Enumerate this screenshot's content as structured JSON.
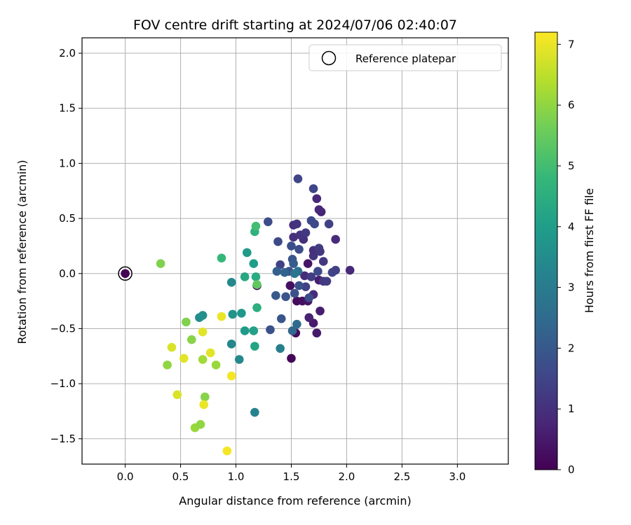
{
  "chart_data": {
    "type": "scatter",
    "title": "FOV centre drift starting at 2024/07/06 02:40:07",
    "xlabel": "Angular distance from reference (arcmin)",
    "ylabel": "Rotation from reference (arcmin)",
    "xlim": [
      -0.39,
      3.46
    ],
    "ylim": [
      -1.73,
      2.14
    ],
    "xticks": [
      "0.0",
      "0.5",
      "1.0",
      "1.5",
      "2.0",
      "2.5",
      "3.0"
    ],
    "xtick_values": [
      0.0,
      0.5,
      1.0,
      1.5,
      2.0,
      2.5,
      3.0
    ],
    "yticks": [
      "−1.5",
      "−1.0",
      "−0.5",
      "0.0",
      "0.5",
      "1.0",
      "1.5",
      "2.0"
    ],
    "ytick_values": [
      -1.5,
      -1.0,
      -0.5,
      0.0,
      0.5,
      1.0,
      1.5,
      2.0
    ],
    "grid": true,
    "legend": {
      "position": "top-right",
      "entries": [
        "Reference platepar"
      ]
    },
    "reference_point": {
      "x": 0.0,
      "y": 0.0,
      "label": "Reference platepar"
    },
    "colorbar": {
      "label": "Hours from first FF file",
      "colormap": "viridis",
      "range": [
        0,
        7.2
      ],
      "ticks": [
        "0",
        "1",
        "2",
        "3",
        "4",
        "5",
        "6",
        "7"
      ],
      "tick_values": [
        0,
        1,
        2,
        3,
        4,
        5,
        6,
        7
      ]
    },
    "points": [
      {
        "x": 0.0,
        "y": 0.0,
        "h": 0.0
      },
      {
        "x": 1.19,
        "y": -0.11,
        "h": 0.1
      },
      {
        "x": 1.5,
        "y": -0.77,
        "h": 0.1
      },
      {
        "x": 1.54,
        "y": -0.54,
        "h": 0.2
      },
      {
        "x": 1.55,
        "y": -0.25,
        "h": 0.2
      },
      {
        "x": 1.49,
        "y": -0.11,
        "h": 0.3
      },
      {
        "x": 1.6,
        "y": -0.25,
        "h": 0.3
      },
      {
        "x": 1.65,
        "y": -0.25,
        "h": 0.4
      },
      {
        "x": 1.65,
        "y": 0.09,
        "h": 0.4
      },
      {
        "x": 1.7,
        "y": -0.45,
        "h": 0.5
      },
      {
        "x": 1.73,
        "y": -0.54,
        "h": 0.5
      },
      {
        "x": 1.76,
        "y": -0.34,
        "h": 0.6
      },
      {
        "x": 1.75,
        "y": -0.06,
        "h": 0.6
      },
      {
        "x": 1.66,
        "y": -0.4,
        "h": 0.7
      },
      {
        "x": 1.77,
        "y": 0.56,
        "h": 0.7
      },
      {
        "x": 1.75,
        "y": 0.58,
        "h": 0.8
      },
      {
        "x": 1.73,
        "y": 0.68,
        "h": 0.8
      },
      {
        "x": 1.62,
        "y": -0.02,
        "h": 0.9
      },
      {
        "x": 1.7,
        "y": -0.19,
        "h": 0.9
      },
      {
        "x": 1.61,
        "y": 0.31,
        "h": 1.0
      },
      {
        "x": 1.52,
        "y": 0.44,
        "h": 1.0
      },
      {
        "x": 1.58,
        "y": 0.35,
        "h": 1.1
      },
      {
        "x": 1.7,
        "y": 0.16,
        "h": 1.1
      },
      {
        "x": 1.79,
        "y": 0.11,
        "h": 1.2
      },
      {
        "x": 1.79,
        "y": -0.07,
        "h": 1.2
      },
      {
        "x": 1.82,
        "y": -0.07,
        "h": 1.3
      },
      {
        "x": 1.68,
        "y": -0.03,
        "h": 1.3
      },
      {
        "x": 1.63,
        "y": -0.12,
        "h": 1.4
      },
      {
        "x": 1.4,
        "y": 0.08,
        "h": 1.4
      },
      {
        "x": 1.56,
        "y": 0.86,
        "h": 1.5
      },
      {
        "x": 1.7,
        "y": 0.77,
        "h": 1.5
      },
      {
        "x": 1.68,
        "y": 0.48,
        "h": 1.6
      },
      {
        "x": 1.71,
        "y": 0.45,
        "h": 1.6
      },
      {
        "x": 1.57,
        "y": 0.22,
        "h": 1.7
      },
      {
        "x": 1.5,
        "y": 0.25,
        "h": 1.7
      },
      {
        "x": 1.48,
        "y": 0.02,
        "h": 1.8
      },
      {
        "x": 1.53,
        "y": -0.18,
        "h": 1.8
      },
      {
        "x": 1.45,
        "y": -0.21,
        "h": 1.9
      },
      {
        "x": 1.41,
        "y": -0.41,
        "h": 1.9
      },
      {
        "x": 1.36,
        "y": -0.2,
        "h": 2.0
      },
      {
        "x": 1.52,
        "y": 0.33,
        "h": 1.0
      },
      {
        "x": 1.55,
        "y": 0.45,
        "h": 1.1
      },
      {
        "x": 1.63,
        "y": 0.37,
        "h": 1.2
      },
      {
        "x": 1.7,
        "y": 0.21,
        "h": 1.0
      },
      {
        "x": 1.75,
        "y": 0.23,
        "h": 1.3
      },
      {
        "x": 1.76,
        "y": 0.2,
        "h": 1.2
      },
      {
        "x": 1.84,
        "y": 0.45,
        "h": 1.4
      },
      {
        "x": 1.87,
        "y": 0.01,
        "h": 1.5
      },
      {
        "x": 1.9,
        "y": 0.31,
        "h": 0.9
      },
      {
        "x": 1.9,
        "y": 0.03,
        "h": 1.4
      },
      {
        "x": 2.03,
        "y": 0.03,
        "h": 0.8
      },
      {
        "x": 1.74,
        "y": 0.02,
        "h": 1.6
      },
      {
        "x": 1.66,
        "y": -0.22,
        "h": 1.7
      },
      {
        "x": 1.57,
        "y": -0.11,
        "h": 1.8
      },
      {
        "x": 1.51,
        "y": 0.13,
        "h": 1.9
      },
      {
        "x": 1.52,
        "y": 0.09,
        "h": 2.1
      },
      {
        "x": 1.38,
        "y": 0.29,
        "h": 1.6
      },
      {
        "x": 1.29,
        "y": 0.47,
        "h": 1.7
      },
      {
        "x": 1.31,
        "y": -0.51,
        "h": 1.8
      },
      {
        "x": 1.37,
        "y": 0.02,
        "h": 2.2
      },
      {
        "x": 1.44,
        "y": 0.01,
        "h": 2.3
      },
      {
        "x": 1.51,
        "y": -0.52,
        "h": 2.4
      },
      {
        "x": 1.55,
        "y": -0.46,
        "h": 2.5
      },
      {
        "x": 1.56,
        "y": 0.02,
        "h": 2.6
      },
      {
        "x": 1.53,
        "y": 0.0,
        "h": 2.8
      },
      {
        "x": 1.4,
        "y": -0.68,
        "h": 3.1
      },
      {
        "x": 1.17,
        "y": -1.26,
        "h": 3.2
      },
      {
        "x": 0.96,
        "y": -0.64,
        "h": 3.3
      },
      {
        "x": 1.03,
        "y": -0.78,
        "h": 3.4
      },
      {
        "x": 0.96,
        "y": -0.08,
        "h": 3.4
      },
      {
        "x": 0.67,
        "y": -0.4,
        "h": 3.5
      },
      {
        "x": 0.7,
        "y": -0.38,
        "h": 3.6
      },
      {
        "x": 0.97,
        "y": -0.37,
        "h": 3.7
      },
      {
        "x": 1.05,
        "y": -0.36,
        "h": 3.8
      },
      {
        "x": 1.08,
        "y": -0.52,
        "h": 3.9
      },
      {
        "x": 1.1,
        "y": 0.19,
        "h": 3.9
      },
      {
        "x": 1.16,
        "y": 0.09,
        "h": 4.0
      },
      {
        "x": 1.16,
        "y": -0.52,
        "h": 4.1
      },
      {
        "x": 1.17,
        "y": -0.66,
        "h": 4.2
      },
      {
        "x": 1.08,
        "y": -0.03,
        "h": 4.3
      },
      {
        "x": 1.18,
        "y": -0.03,
        "h": 4.4
      },
      {
        "x": 1.19,
        "y": -0.31,
        "h": 4.5
      },
      {
        "x": 1.17,
        "y": 0.38,
        "h": 4.6
      },
      {
        "x": 0.87,
        "y": 0.14,
        "h": 4.8
      },
      {
        "x": 1.18,
        "y": 0.43,
        "h": 5.0
      },
      {
        "x": 1.19,
        "y": -0.1,
        "h": 5.4
      },
      {
        "x": 0.32,
        "y": 0.09,
        "h": 5.8
      },
      {
        "x": 0.55,
        "y": -0.44,
        "h": 5.8
      },
      {
        "x": 0.6,
        "y": -0.6,
        "h": 5.9
      },
      {
        "x": 0.72,
        "y": -1.12,
        "h": 5.9
      },
      {
        "x": 0.63,
        "y": -1.4,
        "h": 6.1
      },
      {
        "x": 0.68,
        "y": -1.37,
        "h": 6.0
      },
      {
        "x": 0.82,
        "y": -0.83,
        "h": 6.1
      },
      {
        "x": 0.38,
        "y": -0.83,
        "h": 6.0
      },
      {
        "x": 0.7,
        "y": -0.78,
        "h": 6.2
      },
      {
        "x": 0.42,
        "y": -0.67,
        "h": 6.8
      },
      {
        "x": 0.53,
        "y": -0.77,
        "h": 6.9
      },
      {
        "x": 0.47,
        "y": -1.1,
        "h": 6.8
      },
      {
        "x": 0.7,
        "y": -0.53,
        "h": 6.9
      },
      {
        "x": 0.77,
        "y": -0.72,
        "h": 6.9
      },
      {
        "x": 0.71,
        "y": -1.19,
        "h": 7.0
      },
      {
        "x": 0.87,
        "y": -0.39,
        "h": 7.0
      },
      {
        "x": 0.96,
        "y": -0.93,
        "h": 7.1
      },
      {
        "x": 0.92,
        "y": -1.61,
        "h": 7.1
      }
    ]
  }
}
